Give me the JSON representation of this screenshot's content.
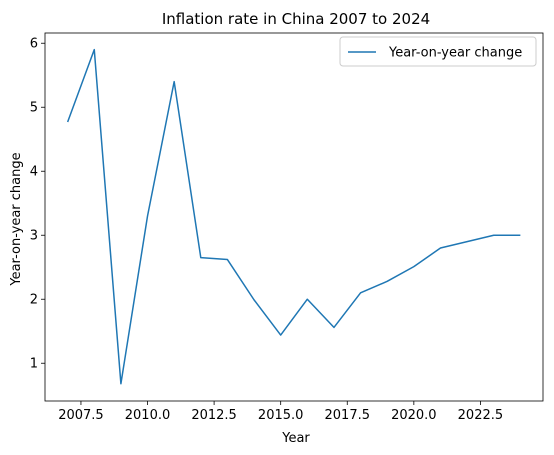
{
  "chart_data": {
    "type": "line",
    "title": "Inflation rate in China 2007 to 2024",
    "xlabel": "Year",
    "ylabel": "Year-on-year change",
    "xlim": [
      2006.15,
      2024.85
    ],
    "ylim": [
      0.41,
      6.16
    ],
    "x_ticks": [
      2007.5,
      2010.0,
      2012.5,
      2015.0,
      2017.5,
      2020.0,
      2022.5
    ],
    "x_tick_labels": [
      "2007.5",
      "2010.0",
      "2012.5",
      "2015.0",
      "2017.5",
      "2020.0",
      "2022.5"
    ],
    "y_ticks": [
      1,
      2,
      3,
      4,
      5,
      6
    ],
    "y_tick_labels": [
      "1",
      "2",
      "3",
      "4",
      "5",
      "6"
    ],
    "grid": false,
    "legend_position": "top-right",
    "series": [
      {
        "name": "Year-on-year change",
        "color": "#1f77b4",
        "x": [
          2007,
          2008,
          2009,
          2010,
          2011,
          2012,
          2013,
          2014,
          2015,
          2016,
          2017,
          2018,
          2019,
          2020,
          2021,
          2022,
          2023,
          2024
        ],
        "y": [
          4.77,
          5.9,
          0.68,
          3.3,
          5.4,
          2.65,
          2.62,
          1.99,
          1.44,
          2.0,
          1.56,
          2.1,
          2.28,
          2.51,
          2.8,
          2.9,
          3.0,
          3.0
        ]
      }
    ]
  }
}
